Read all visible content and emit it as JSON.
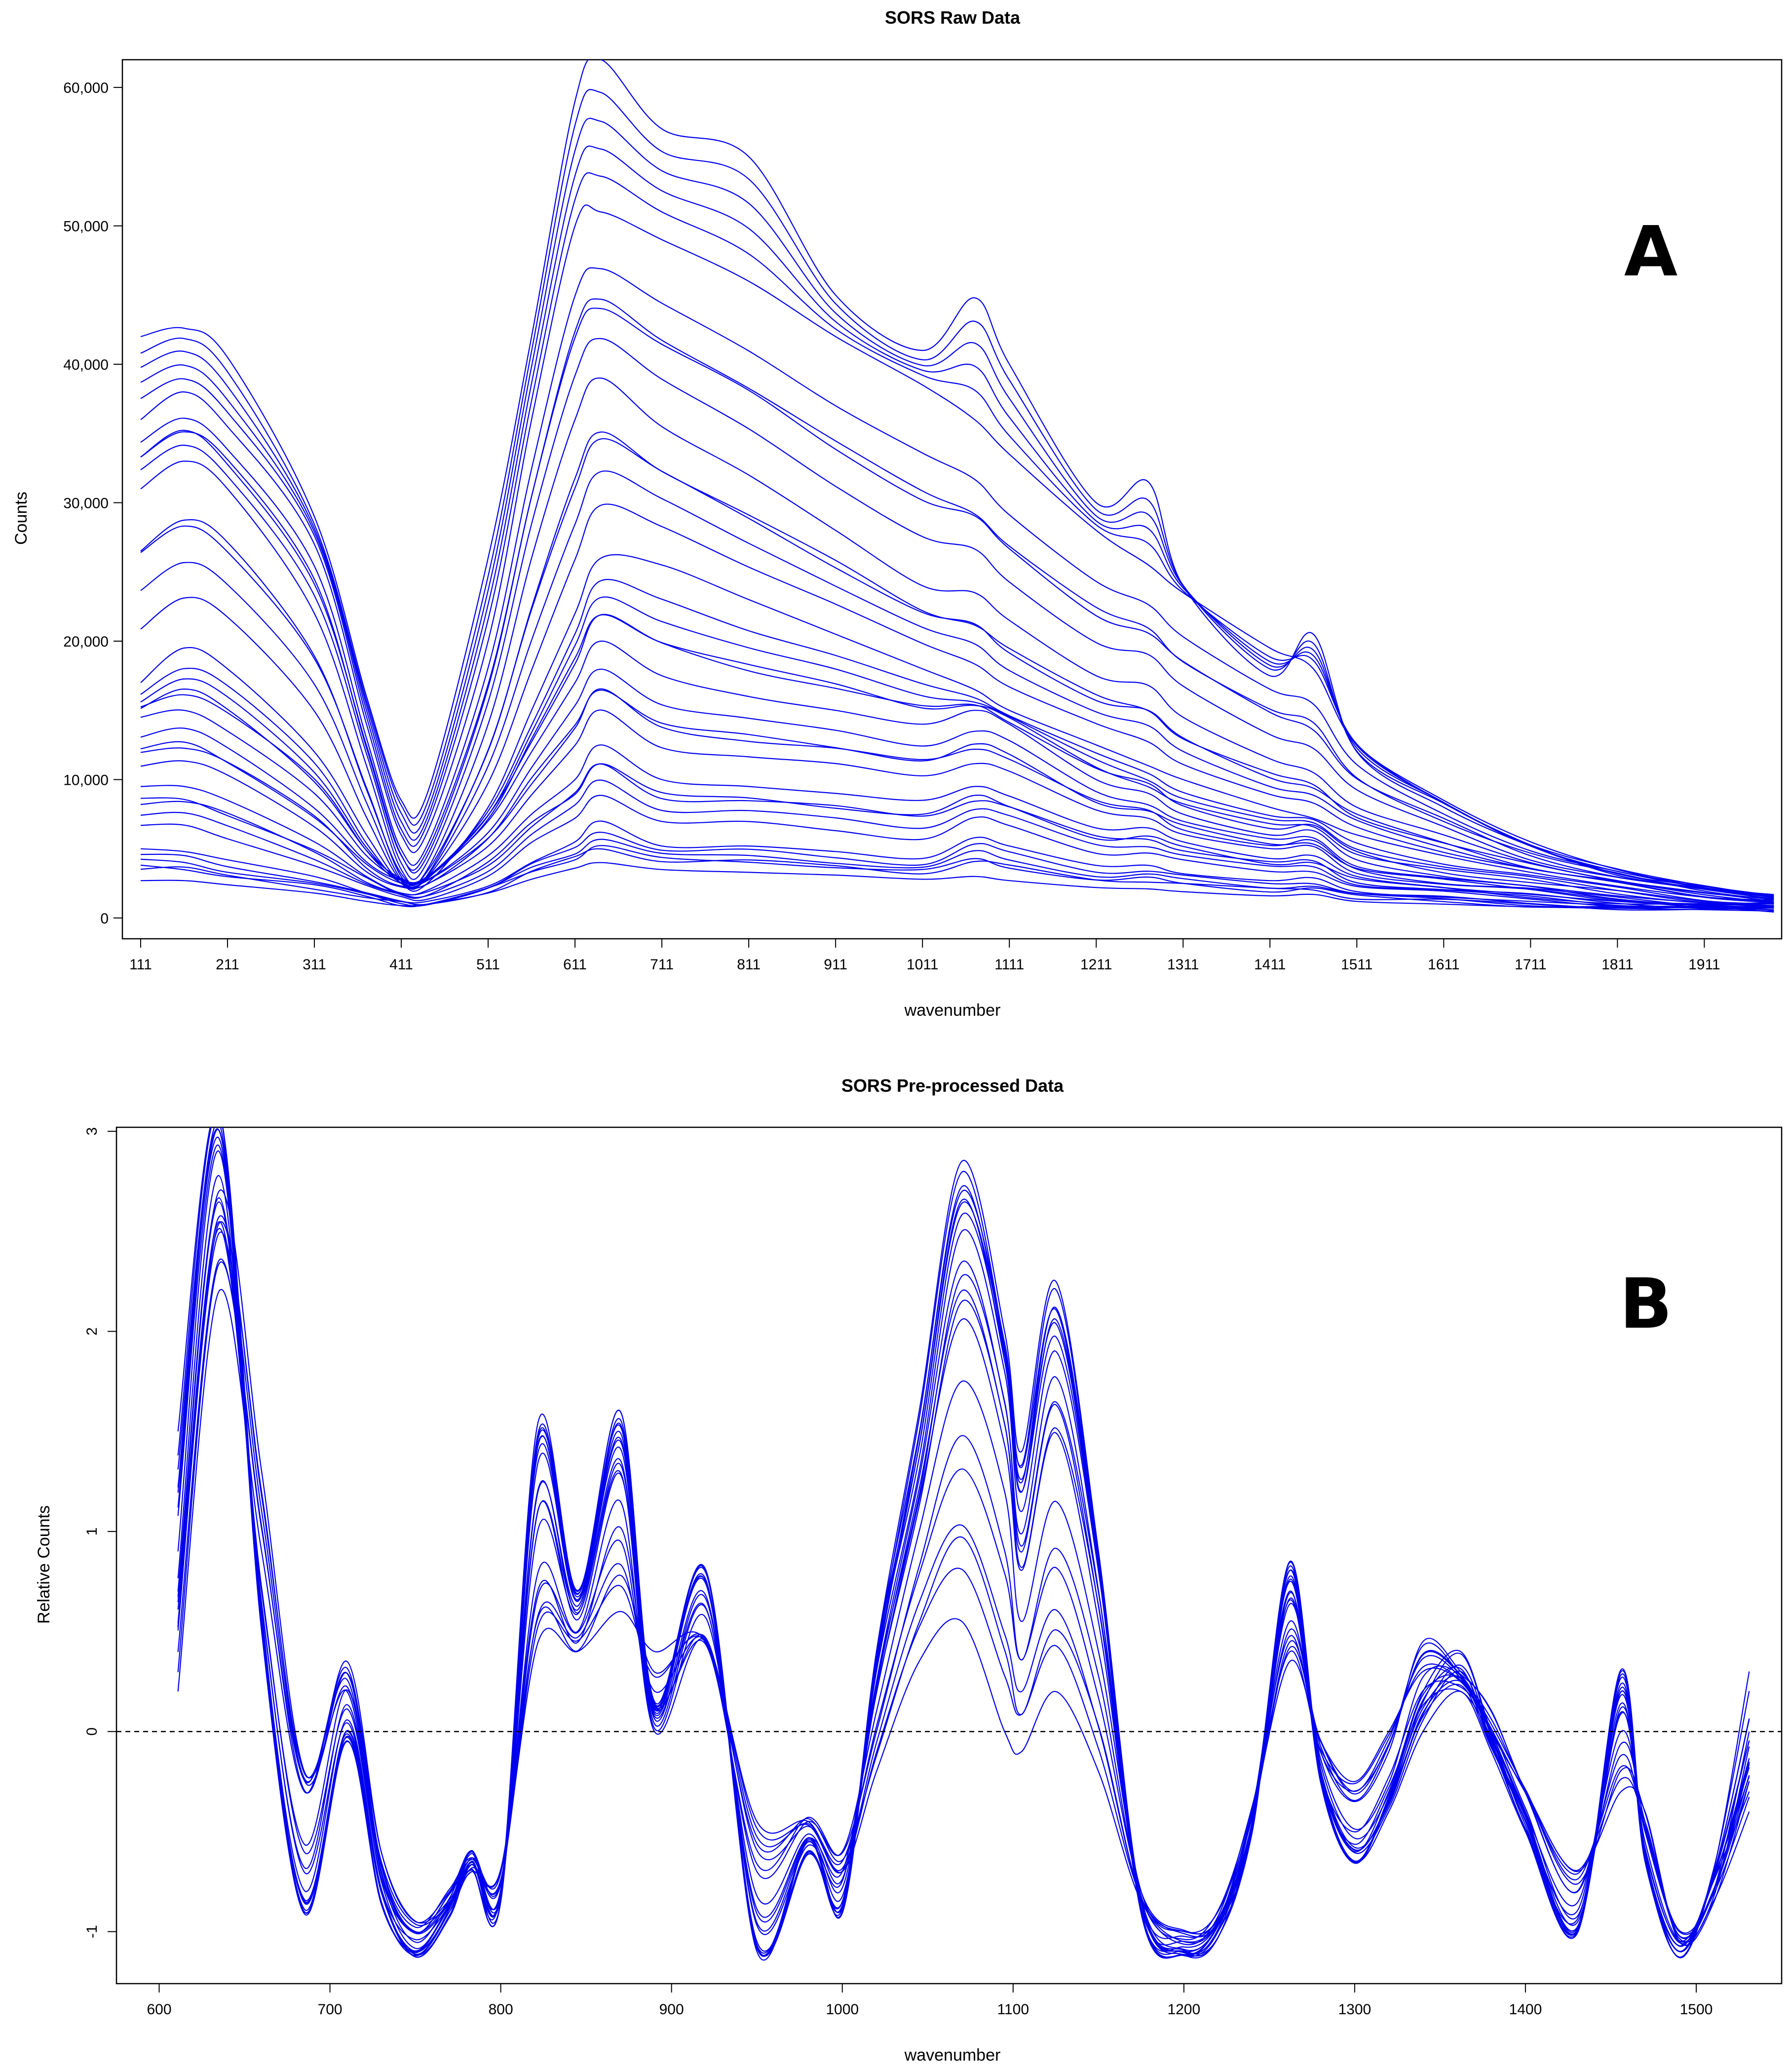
{
  "colors": {
    "line": "#0000ee",
    "axis": "#000000",
    "background": "#ffffff"
  },
  "chart_data": [
    {
      "type": "line",
      "panel_label": "A",
      "title": "SORS Raw Data",
      "xlabel": "wavenumber",
      "ylabel": "Counts",
      "xlim": [
        90,
        2000
      ],
      "ylim": [
        -1500,
        62000
      ],
      "xticks": [
        111,
        211,
        311,
        411,
        511,
        611,
        711,
        811,
        911,
        1011,
        1111,
        1211,
        1311,
        1411,
        1511,
        1611,
        1711,
        1811,
        1911
      ],
      "xtick_labels": [
        "111",
        "211",
        "311",
        "411",
        "511",
        "611",
        "711",
        "811",
        "911",
        "1011",
        "1111",
        "1211",
        "1311",
        "1411",
        "1511",
        "1611",
        "1711",
        "1811",
        "1911"
      ],
      "yticks": [
        0,
        10000,
        20000,
        30000,
        40000,
        50000,
        60000
      ],
      "ytick_labels": [
        "0",
        "10,000",
        "20,000",
        "30,000",
        "40,000",
        "50,000",
        "60,000"
      ],
      "grid": false,
      "series_count": 36,
      "representative_series": [
        {
          "x": [
            111,
            161,
            211,
            311,
            371,
            411,
            441,
            511,
            561,
            611,
            641,
            711,
            811,
            911,
            1011,
            1071,
            1111,
            1211,
            1271,
            1311,
            1411,
            1461,
            1511,
            1611,
            1711,
            1811,
            1911,
            1991
          ],
          "y": [
            42000,
            42600,
            40500,
            29000,
            16000,
            8500,
            9000,
            26000,
            42000,
            59000,
            62000,
            57000,
            55000,
            45000,
            41000,
            44800,
            40000,
            30000,
            31500,
            24000,
            17500,
            20500,
            12000,
            8000,
            5200,
            3200,
            2100,
            1500
          ]
        },
        {
          "x": [
            111,
            161,
            211,
            311,
            371,
            411,
            441,
            511,
            561,
            611,
            641,
            711,
            811,
            911,
            1011,
            1071,
            1111,
            1211,
            1271,
            1311,
            1411,
            1461,
            1511,
            1611,
            1711,
            1811,
            1911,
            1991
          ],
          "y": [
            36000,
            38000,
            35500,
            27000,
            14000,
            6000,
            6200,
            20000,
            36000,
            50000,
            51000,
            49000,
            46000,
            42000,
            38500,
            36000,
            33500,
            28000,
            25500,
            23500,
            19500,
            18000,
            12500,
            8500,
            5500,
            3500,
            2200,
            1600
          ]
        },
        {
          "x": [
            111,
            161,
            211,
            311,
            371,
            411,
            441,
            511,
            561,
            611,
            641,
            711,
            811,
            911,
            1011,
            1071,
            1111,
            1211,
            1271,
            1311,
            1411,
            1461,
            1511,
            1611,
            1711,
            1811,
            1911,
            1991
          ],
          "y": [
            31000,
            33000,
            31000,
            22000,
            11000,
            3500,
            3500,
            14000,
            26000,
            36000,
            39000,
            35500,
            32000,
            28000,
            24000,
            23500,
            21500,
            17500,
            16800,
            14500,
            11500,
            10500,
            8000,
            6000,
            4000,
            2700,
            1800,
            1400
          ]
        },
        {
          "x": [
            111,
            161,
            211,
            311,
            371,
            411,
            441,
            511,
            561,
            611,
            641,
            711,
            811,
            911,
            1011,
            1071,
            1111,
            1211,
            1271,
            1311,
            1411,
            1461,
            1511,
            1611,
            1711,
            1811,
            1911,
            1991
          ],
          "y": [
            17000,
            19500,
            18000,
            12000,
            6000,
            2500,
            2500,
            8000,
            15000,
            22000,
            26000,
            25500,
            23000,
            20500,
            18000,
            16500,
            15000,
            12500,
            11000,
            10000,
            8000,
            7200,
            6000,
            4500,
            3300,
            2300,
            1500,
            1200
          ]
        },
        {
          "x": [
            111,
            161,
            211,
            311,
            371,
            411,
            441,
            511,
            561,
            611,
            641,
            711,
            811,
            911,
            1011,
            1071,
            1111,
            1211,
            1271,
            1311,
            1411,
            1461,
            1511,
            1611,
            1711,
            1811,
            1911,
            1991
          ],
          "y": [
            14500,
            15000,
            13500,
            9000,
            4500,
            2800,
            3000,
            7000,
            12000,
            17000,
            20000,
            17500,
            16000,
            15000,
            14000,
            15000,
            14000,
            10000,
            9000,
            7500,
            6000,
            6300,
            4200,
            3000,
            2300,
            1600,
            1100,
            900
          ]
        },
        {
          "x": [
            111,
            161,
            211,
            311,
            371,
            411,
            441,
            511,
            561,
            611,
            641,
            711,
            811,
            911,
            1011,
            1071,
            1111,
            1211,
            1271,
            1311,
            1411,
            1461,
            1511,
            1611,
            1711,
            1811,
            1911,
            1991
          ],
          "y": [
            9500,
            9500,
            8500,
            5500,
            3000,
            1800,
            2000,
            4500,
            7500,
            10000,
            12500,
            10000,
            9500,
            9000,
            8500,
            9500,
            8800,
            6500,
            6500,
            5500,
            4300,
            4500,
            3000,
            2200,
            1700,
            1200,
            900,
            800
          ]
        },
        {
          "x": [
            111,
            161,
            211,
            311,
            371,
            411,
            441,
            511,
            561,
            611,
            641,
            711,
            811,
            911,
            1011,
            1071,
            1111,
            1211,
            1271,
            1311,
            1411,
            1461,
            1511,
            1611,
            1711,
            1811,
            1911,
            1991
          ],
          "y": [
            5000,
            4800,
            4200,
            3000,
            1800,
            1200,
            1200,
            2300,
            4000,
            5500,
            7000,
            5200,
            5200,
            4800,
            4300,
            5800,
            5200,
            3800,
            3800,
            3200,
            2700,
            2900,
            1900,
            1500,
            1200,
            900,
            700,
            600
          ]
        },
        {
          "x": [
            111,
            161,
            211,
            311,
            371,
            411,
            441,
            511,
            561,
            611,
            641,
            711,
            811,
            911,
            1011,
            1071,
            1111,
            1211,
            1271,
            1311,
            1411,
            1461,
            1511,
            1611,
            1711,
            1811,
            1911,
            1991
          ],
          "y": [
            2700,
            2700,
            2400,
            1800,
            1200,
            900,
            1000,
            1800,
            2800,
            3600,
            4000,
            3500,
            3300,
            3100,
            2800,
            3000,
            2700,
            2200,
            2100,
            1900,
            1600,
            1700,
            1200,
            1000,
            800,
            700,
            600,
            500
          ]
        }
      ]
    },
    {
      "type": "line",
      "panel_label": "B",
      "title": "SORS Pre-processed Data",
      "xlabel": "wavenumber",
      "ylabel": "Relative Counts",
      "xlim": [
        575,
        1550
      ],
      "ylim": [
        -1.26,
        3.02
      ],
      "xticks": [
        600,
        700,
        800,
        900,
        1000,
        1100,
        1200,
        1300,
        1400,
        1500
      ],
      "xtick_labels": [
        "600",
        "700",
        "800",
        "900",
        "1000",
        "1100",
        "1200",
        "1300",
        "1400",
        "1500"
      ],
      "yticks": [
        -1,
        0,
        1,
        2,
        3
      ],
      "ytick_labels": [
        "-1",
        "0",
        "1",
        "2",
        "3"
      ],
      "reference_line": {
        "y": 0,
        "style": "dashed"
      },
      "grid": false,
      "series_count": 20,
      "representative_series": [
        {
          "x": [
            611,
            635,
            660,
            685,
            710,
            730,
            750,
            770,
            783,
            800,
            822,
            845,
            870,
            890,
            920,
            950,
            980,
            1000,
            1020,
            1045,
            1070,
            1095,
            1105,
            1125,
            1150,
            1175,
            1200,
            1220,
            1240,
            1262,
            1280,
            1300,
            1320,
            1340,
            1362,
            1380,
            1400,
            1430,
            1456,
            1470,
            1490,
            1510,
            1531
          ],
          "y": [
            1.5,
            3.1,
            0.6,
            -0.85,
            0.0,
            -0.8,
            -1.1,
            -0.9,
            -0.7,
            -0.8,
            1.55,
            0.7,
            1.6,
            0.15,
            0.8,
            -1.1,
            -0.55,
            -0.9,
            0.4,
            1.6,
            2.85,
            2.0,
            1.4,
            2.25,
            0.9,
            -0.85,
            -1.1,
            -1.0,
            -0.5,
            0.85,
            -0.2,
            -0.6,
            -0.3,
            0.2,
            0.4,
            0.0,
            -0.4,
            -1.0,
            0.3,
            -0.6,
            -1.1,
            -0.7,
            0.3
          ]
        },
        {
          "x": [
            611,
            635,
            660,
            685,
            710,
            730,
            750,
            770,
            783,
            800,
            822,
            845,
            870,
            890,
            920,
            950,
            980,
            1000,
            1020,
            1045,
            1070,
            1095,
            1105,
            1125,
            1150,
            1175,
            1200,
            1220,
            1240,
            1262,
            1280,
            1300,
            1320,
            1340,
            1362,
            1380,
            1400,
            1430,
            1456,
            1470,
            1490,
            1510,
            1531
          ],
          "y": [
            0.9,
            2.9,
            0.5,
            -0.9,
            -0.05,
            -0.85,
            -1.12,
            -0.9,
            -0.65,
            -0.85,
            1.35,
            0.65,
            1.45,
            0.1,
            0.75,
            -1.05,
            -0.6,
            -0.85,
            0.3,
            1.3,
            2.5,
            1.8,
            1.1,
            1.9,
            0.8,
            -0.9,
            -1.12,
            -1.0,
            -0.45,
            0.75,
            -0.25,
            -0.65,
            -0.4,
            0.0,
            0.2,
            -0.1,
            -0.5,
            -1.0,
            0.2,
            -0.65,
            -1.1,
            -0.75,
            -0.3
          ]
        },
        {
          "x": [
            611,
            635,
            660,
            685,
            710,
            730,
            750,
            770,
            783,
            800,
            822,
            845,
            870,
            890,
            920,
            950,
            980,
            1000,
            1020,
            1045,
            1070,
            1095,
            1105,
            1125,
            1150,
            1175,
            1200,
            1220,
            1240,
            1262,
            1280,
            1300,
            1320,
            1340,
            1362,
            1380,
            1400,
            1430,
            1456,
            1470,
            1490,
            1510,
            1531
          ],
          "y": [
            0.2,
            2.2,
            0.9,
            -0.3,
            0.35,
            -0.6,
            -0.95,
            -0.8,
            -0.6,
            -0.75,
            0.8,
            0.5,
            1.15,
            0.0,
            0.45,
            -0.7,
            -0.45,
            -0.6,
            0.1,
            1.0,
            1.75,
            1.2,
            0.55,
            1.15,
            0.4,
            -0.8,
            -1.0,
            -0.9,
            -0.4,
            0.55,
            -0.1,
            -0.35,
            -0.1,
            0.45,
            0.3,
            0.1,
            -0.3,
            -0.8,
            0.0,
            -0.5,
            -1.0,
            -0.8,
            0.0
          ]
        },
        {
          "x": [
            611,
            635,
            660,
            685,
            710,
            730,
            750,
            770,
            783,
            800,
            822,
            845,
            870,
            890,
            920,
            950,
            980,
            1000,
            1020,
            1045,
            1070,
            1095,
            1105,
            1125,
            1150,
            1175,
            1200,
            1220,
            1240,
            1262,
            1280,
            1300,
            1320,
            1340,
            1362,
            1380,
            1400,
            1430,
            1456,
            1470,
            1490,
            1510,
            1531
          ],
          "y": [
            0.7,
            2.7,
            1.3,
            -0.2,
            0.2,
            -0.7,
            -1.0,
            -0.85,
            -0.7,
            -0.7,
            0.45,
            0.4,
            0.6,
            0.4,
            0.45,
            -0.45,
            -0.45,
            -0.7,
            -0.2,
            0.35,
            0.55,
            0.0,
            -0.1,
            0.2,
            -0.2,
            -0.85,
            -1.05,
            -0.95,
            -0.4,
            0.35,
            -0.05,
            -0.25,
            0.0,
            0.3,
            0.25,
            0.0,
            -0.3,
            -0.7,
            -0.3,
            -0.4,
            -1.05,
            -0.85,
            -0.4
          ]
        }
      ]
    }
  ]
}
